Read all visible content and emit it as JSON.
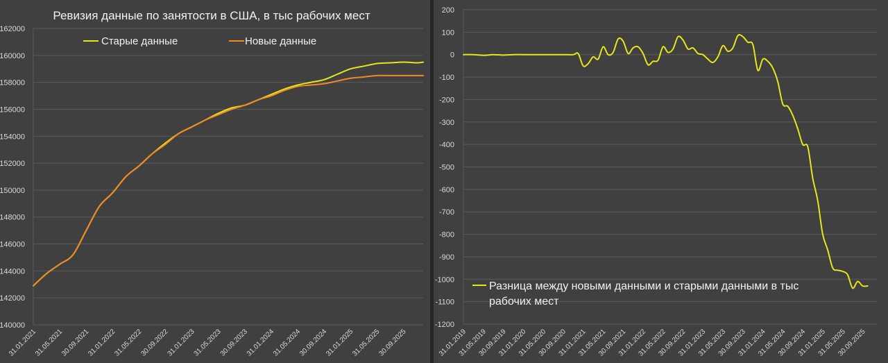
{
  "colors": {
    "background": "#404040",
    "grid": "#5a5a5a",
    "old_series": "#e6e61a",
    "new_series": "#f08a28",
    "diff_series": "#e6e61a"
  },
  "chart_data": [
    {
      "type": "line",
      "title": "Ревизия данные по занятости в США, в тыс рабочих мест",
      "xlabel": "",
      "ylabel": "",
      "ylim": [
        140000,
        162000
      ],
      "y_ticks": [
        "140000",
        "142000",
        "144000",
        "146000",
        "148000",
        "150000",
        "152000",
        "154000",
        "156000",
        "158000",
        "160000",
        "162000"
      ],
      "x_tick_labels": [
        "31.01.2021",
        "31.05.2021",
        "30.09.2021",
        "31.01.2022",
        "31.05.2022",
        "30.09.2022",
        "31.01.2023",
        "31.05.2023",
        "30.09.2023",
        "31.01.2024",
        "31.05.2024",
        "30.09.2024",
        "31.01.2025",
        "31.05.2025",
        "30.09.2025"
      ],
      "grid": true,
      "legend_position": "top",
      "x_start": "2021-01",
      "x_end": "2025-12",
      "series": [
        {
          "name": "Старые данные",
          "color": "#e6e61a",
          "points": [
            [
              "2021-01",
              142900
            ],
            [
              "2021-03",
              143800
            ],
            [
              "2021-05",
              144500
            ],
            [
              "2021-07",
              145200
            ],
            [
              "2021-09",
              147000
            ],
            [
              "2021-11",
              148800
            ],
            [
              "2022-01",
              149800
            ],
            [
              "2022-03",
              151000
            ],
            [
              "2022-05",
              151800
            ],
            [
              "2022-07",
              152700
            ],
            [
              "2022-09",
              153500
            ],
            [
              "2022-11",
              154200
            ],
            [
              "2023-01",
              154700
            ],
            [
              "2023-03",
              155200
            ],
            [
              "2023-05",
              155700
            ],
            [
              "2023-07",
              156100
            ],
            [
              "2023-09",
              156300
            ],
            [
              "2023-11",
              156700
            ],
            [
              "2024-01",
              157100
            ],
            [
              "2024-03",
              157500
            ],
            [
              "2024-05",
              157800
            ],
            [
              "2024-07",
              158000
            ],
            [
              "2024-09",
              158200
            ],
            [
              "2024-11",
              158600
            ],
            [
              "2025-01",
              159000
            ],
            [
              "2025-03",
              159200
            ],
            [
              "2025-05",
              159400
            ],
            [
              "2025-07",
              159450
            ],
            [
              "2025-09",
              159500
            ],
            [
              "2025-11",
              159450
            ],
            [
              "2025-12",
              159500
            ]
          ]
        },
        {
          "name": "Новые данные",
          "color": "#f08a28",
          "points": [
            [
              "2021-01",
              142900
            ],
            [
              "2021-03",
              143800
            ],
            [
              "2021-05",
              144500
            ],
            [
              "2021-07",
              145200
            ],
            [
              "2021-09",
              147000
            ],
            [
              "2021-11",
              148800
            ],
            [
              "2022-01",
              149800
            ],
            [
              "2022-03",
              151000
            ],
            [
              "2022-05",
              151800
            ],
            [
              "2022-07",
              152700
            ],
            [
              "2022-09",
              153400
            ],
            [
              "2022-11",
              154200
            ],
            [
              "2023-01",
              154700
            ],
            [
              "2023-03",
              155200
            ],
            [
              "2023-05",
              155600
            ],
            [
              "2023-07",
              156000
            ],
            [
              "2023-09",
              156300
            ],
            [
              "2023-11",
              156700
            ],
            [
              "2024-01",
              157000
            ],
            [
              "2024-03",
              157400
            ],
            [
              "2024-05",
              157700
            ],
            [
              "2024-07",
              157800
            ],
            [
              "2024-09",
              157900
            ],
            [
              "2024-11",
              158100
            ],
            [
              "2025-01",
              158300
            ],
            [
              "2025-03",
              158400
            ],
            [
              "2025-05",
              158500
            ],
            [
              "2025-07",
              158500
            ],
            [
              "2025-09",
              158500
            ],
            [
              "2025-11",
              158500
            ],
            [
              "2025-12",
              158500
            ]
          ]
        }
      ]
    },
    {
      "type": "line",
      "title": "",
      "xlabel": "",
      "ylabel": "",
      "ylim": [
        -1200,
        200
      ],
      "y_ticks": [
        "200",
        "100",
        "0",
        "-100",
        "-200",
        "-300",
        "-400",
        "-500",
        "-600",
        "-700",
        "-800",
        "-900",
        "-1000",
        "-1100",
        "-1200"
      ],
      "x_tick_labels": [
        "31.01.2019",
        "31.05.2019",
        "30.09.2019",
        "31.01.2020",
        "31.05.2020",
        "30.09.2020",
        "31.01.2021",
        "31.05.2021",
        "30.09.2021",
        "31.01.2022",
        "31.05.2022",
        "30.09.2022",
        "31.01.2023",
        "31.05.2023",
        "30.09.2023",
        "31.01.2024",
        "31.05.2024",
        "30.09.2024",
        "31.01.2025",
        "31.05.2025",
        "30.09.2025"
      ],
      "grid": true,
      "legend_position": "bottom-right",
      "x_start": "2019-01",
      "x_end": "2025-12",
      "series": [
        {
          "name": "Разница между новыми данными и старыми данными в тыс рабочих мест",
          "color": "#e6e61a",
          "points": [
            [
              "2019-01",
              0
            ],
            [
              "2019-03",
              0
            ],
            [
              "2019-05",
              -3
            ],
            [
              "2019-07",
              0
            ],
            [
              "2019-09",
              -2
            ],
            [
              "2019-11",
              0
            ],
            [
              "2020-01",
              0
            ],
            [
              "2020-03",
              0
            ],
            [
              "2020-05",
              0
            ],
            [
              "2020-07",
              0
            ],
            [
              "2020-09",
              0
            ],
            [
              "2020-11",
              0
            ],
            [
              "2020-12",
              5
            ],
            [
              "2021-01",
              -50
            ],
            [
              "2021-02",
              -40
            ],
            [
              "2021-03",
              -10
            ],
            [
              "2021-04",
              -20
            ],
            [
              "2021-05",
              35
            ],
            [
              "2021-06",
              0
            ],
            [
              "2021-07",
              10
            ],
            [
              "2021-08",
              70
            ],
            [
              "2021-09",
              60
            ],
            [
              "2021-10",
              5
            ],
            [
              "2021-11",
              30
            ],
            [
              "2021-12",
              35
            ],
            [
              "2022-01",
              5
            ],
            [
              "2022-02",
              -45
            ],
            [
              "2022-03",
              -30
            ],
            [
              "2022-04",
              -25
            ],
            [
              "2022-05",
              35
            ],
            [
              "2022-06",
              10
            ],
            [
              "2022-07",
              25
            ],
            [
              "2022-08",
              80
            ],
            [
              "2022-09",
              65
            ],
            [
              "2022-10",
              25
            ],
            [
              "2022-11",
              30
            ],
            [
              "2022-12",
              5
            ],
            [
              "2023-01",
              0
            ],
            [
              "2023-02",
              -20
            ],
            [
              "2023-03",
              -35
            ],
            [
              "2023-04",
              -10
            ],
            [
              "2023-05",
              40
            ],
            [
              "2023-06",
              15
            ],
            [
              "2023-07",
              30
            ],
            [
              "2023-08",
              85
            ],
            [
              "2023-09",
              80
            ],
            [
              "2023-10",
              55
            ],
            [
              "2023-11",
              45
            ],
            [
              "2023-12",
              -70
            ],
            [
              "2024-01",
              -20
            ],
            [
              "2024-02",
              -30
            ],
            [
              "2024-03",
              -60
            ],
            [
              "2024-04",
              -120
            ],
            [
              "2024-05",
              -220
            ],
            [
              "2024-06",
              -230
            ],
            [
              "2024-07",
              -270
            ],
            [
              "2024-08",
              -330
            ],
            [
              "2024-09",
              -400
            ],
            [
              "2024-10",
              -410
            ],
            [
              "2024-11",
              -550
            ],
            [
              "2024-12",
              -650
            ],
            [
              "2025-01",
              -800
            ],
            [
              "2025-02",
              -870
            ],
            [
              "2025-03",
              -950
            ],
            [
              "2025-04",
              -960
            ],
            [
              "2025-05",
              -965
            ],
            [
              "2025-06",
              -980
            ],
            [
              "2025-07",
              -1040
            ],
            [
              "2025-08",
              -1010
            ],
            [
              "2025-09",
              -1030
            ],
            [
              "2025-10",
              -1030
            ]
          ]
        }
      ]
    }
  ]
}
